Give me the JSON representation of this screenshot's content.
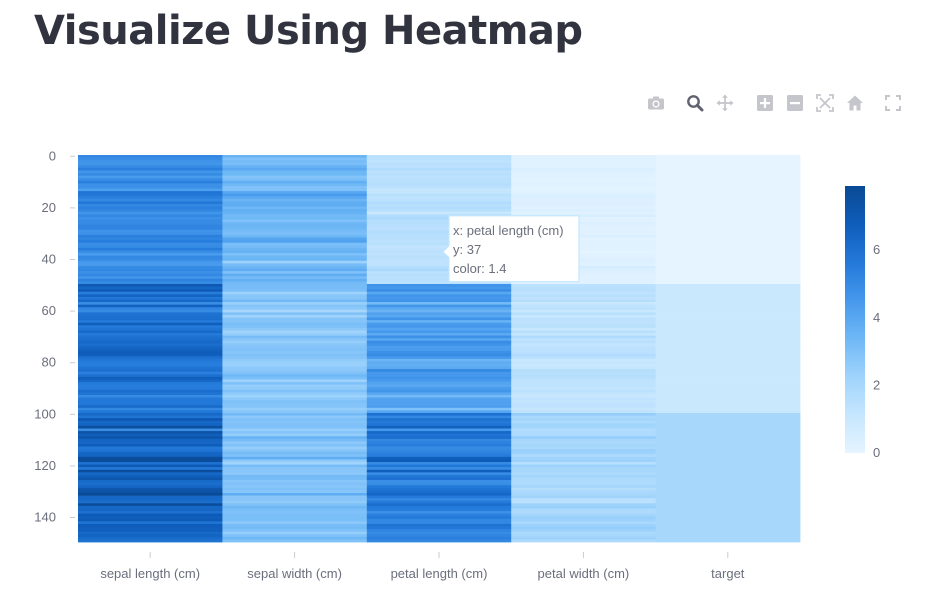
{
  "page": {
    "title": "Visualize Using Heatmap"
  },
  "toolbar": {
    "buttons": [
      {
        "name": "camera-icon",
        "title": "Download plot as a png"
      },
      {
        "name": "zoom-icon",
        "title": "Zoom"
      },
      {
        "name": "pan-icon",
        "title": "Pan"
      },
      {
        "name": "zoom-in-icon",
        "title": "Zoom in"
      },
      {
        "name": "zoom-out-icon",
        "title": "Zoom out"
      },
      {
        "name": "autoscale-icon",
        "title": "Autoscale"
      },
      {
        "name": "reset-axes-icon",
        "title": "Reset axes"
      },
      {
        "name": "fullscreen-icon",
        "title": "Fullscreen"
      }
    ]
  },
  "chart_data": {
    "type": "heatmap",
    "x": [
      "sepal length (cm)",
      "sepal width (cm)",
      "petal length (cm)",
      "petal width (cm)",
      "target"
    ],
    "y_range": [
      0,
      149
    ],
    "yticks": [
      0,
      20,
      40,
      60,
      80,
      100,
      120,
      140
    ],
    "colorbar": {
      "min": 0,
      "max": 7.9,
      "ticks": [
        0,
        2,
        4,
        6
      ]
    },
    "colorscale": [
      "#e6f4ff",
      "#c5e6fe",
      "#9fd3fc",
      "#6fb8f6",
      "#4598ec",
      "#2379d8",
      "#0f5dbb",
      "#0a4a94"
    ],
    "hover": {
      "line1": "x: petal length (cm)",
      "line2": "y: 37",
      "line3": "color: 1.4"
    },
    "rows": [
      [
        5.1,
        3.5,
        1.4,
        0.2,
        0
      ],
      [
        4.9,
        3.0,
        1.4,
        0.2,
        0
      ],
      [
        4.7,
        3.2,
        1.3,
        0.2,
        0
      ],
      [
        4.6,
        3.1,
        1.5,
        0.2,
        0
      ],
      [
        5.0,
        3.6,
        1.4,
        0.2,
        0
      ],
      [
        5.4,
        3.9,
        1.7,
        0.4,
        0
      ],
      [
        4.6,
        3.4,
        1.4,
        0.3,
        0
      ],
      [
        5.0,
        3.4,
        1.5,
        0.2,
        0
      ],
      [
        4.4,
        2.9,
        1.4,
        0.2,
        0
      ],
      [
        4.9,
        3.1,
        1.5,
        0.1,
        0
      ],
      [
        5.4,
        3.7,
        1.5,
        0.2,
        0
      ],
      [
        4.8,
        3.4,
        1.6,
        0.2,
        0
      ],
      [
        4.8,
        3.0,
        1.4,
        0.1,
        0
      ],
      [
        4.3,
        3.0,
        1.1,
        0.1,
        0
      ],
      [
        5.8,
        4.0,
        1.2,
        0.2,
        0
      ],
      [
        5.7,
        4.4,
        1.5,
        0.4,
        0
      ],
      [
        5.4,
        3.9,
        1.3,
        0.4,
        0
      ],
      [
        5.1,
        3.5,
        1.4,
        0.3,
        0
      ],
      [
        5.7,
        3.8,
        1.7,
        0.3,
        0
      ],
      [
        5.1,
        3.8,
        1.5,
        0.3,
        0
      ],
      [
        5.4,
        3.4,
        1.7,
        0.2,
        0
      ],
      [
        5.1,
        3.7,
        1.5,
        0.4,
        0
      ],
      [
        4.6,
        3.6,
        1.0,
        0.2,
        0
      ],
      [
        5.1,
        3.3,
        1.7,
        0.5,
        0
      ],
      [
        4.8,
        3.4,
        1.9,
        0.2,
        0
      ],
      [
        5.0,
        3.0,
        1.6,
        0.2,
        0
      ],
      [
        5.0,
        3.4,
        1.6,
        0.4,
        0
      ],
      [
        5.2,
        3.5,
        1.5,
        0.2,
        0
      ],
      [
        5.2,
        3.4,
        1.4,
        0.2,
        0
      ],
      [
        4.7,
        3.2,
        1.6,
        0.2,
        0
      ],
      [
        4.8,
        3.1,
        1.6,
        0.2,
        0
      ],
      [
        5.4,
        3.4,
        1.5,
        0.4,
        0
      ],
      [
        5.2,
        4.1,
        1.5,
        0.1,
        0
      ],
      [
        5.5,
        4.2,
        1.4,
        0.2,
        0
      ],
      [
        4.9,
        3.1,
        1.5,
        0.2,
        0
      ],
      [
        5.0,
        3.2,
        1.2,
        0.2,
        0
      ],
      [
        5.5,
        3.5,
        1.3,
        0.2,
        0
      ],
      [
        4.9,
        3.6,
        1.4,
        0.1,
        0
      ],
      [
        4.4,
        3.0,
        1.3,
        0.2,
        0
      ],
      [
        5.1,
        3.4,
        1.5,
        0.2,
        0
      ],
      [
        5.0,
        3.5,
        1.3,
        0.3,
        0
      ],
      [
        4.5,
        2.3,
        1.3,
        0.3,
        0
      ],
      [
        4.4,
        3.2,
        1.3,
        0.2,
        0
      ],
      [
        5.0,
        3.5,
        1.6,
        0.6,
        0
      ],
      [
        5.1,
        3.8,
        1.9,
        0.4,
        0
      ],
      [
        4.8,
        3.0,
        1.4,
        0.3,
        0
      ],
      [
        5.1,
        3.8,
        1.6,
        0.2,
        0
      ],
      [
        4.6,
        3.2,
        1.4,
        0.2,
        0
      ],
      [
        5.3,
        3.7,
        1.5,
        0.2,
        0
      ],
      [
        5.0,
        3.3,
        1.4,
        0.2,
        0
      ],
      [
        7.0,
        3.2,
        4.7,
        1.4,
        1
      ],
      [
        6.4,
        3.2,
        4.5,
        1.5,
        1
      ],
      [
        6.9,
        3.1,
        4.9,
        1.5,
        1
      ],
      [
        5.5,
        2.3,
        4.0,
        1.3,
        1
      ],
      [
        6.5,
        2.8,
        4.6,
        1.5,
        1
      ],
      [
        5.7,
        2.8,
        4.5,
        1.3,
        1
      ],
      [
        6.3,
        3.3,
        4.7,
        1.6,
        1
      ],
      [
        4.9,
        2.4,
        3.3,
        1.0,
        1
      ],
      [
        6.6,
        2.9,
        4.6,
        1.3,
        1
      ],
      [
        5.2,
        2.7,
        3.9,
        1.4,
        1
      ],
      [
        5.0,
        2.0,
        3.5,
        1.0,
        1
      ],
      [
        5.9,
        3.0,
        4.2,
        1.5,
        1
      ],
      [
        6.0,
        2.2,
        4.0,
        1.0,
        1
      ],
      [
        6.1,
        2.9,
        4.7,
        1.4,
        1
      ],
      [
        5.6,
        2.9,
        3.6,
        1.3,
        1
      ],
      [
        6.7,
        3.1,
        4.4,
        1.4,
        1
      ],
      [
        5.6,
        3.0,
        4.5,
        1.5,
        1
      ],
      [
        5.8,
        2.7,
        4.1,
        1.0,
        1
      ],
      [
        6.2,
        2.2,
        4.5,
        1.5,
        1
      ],
      [
        5.6,
        2.5,
        3.9,
        1.1,
        1
      ],
      [
        5.9,
        3.2,
        4.8,
        1.8,
        1
      ],
      [
        6.1,
        2.8,
        4.0,
        1.3,
        1
      ],
      [
        6.3,
        2.5,
        4.9,
        1.5,
        1
      ],
      [
        6.1,
        2.8,
        4.7,
        1.2,
        1
      ],
      [
        6.4,
        2.9,
        4.3,
        1.3,
        1
      ],
      [
        6.6,
        3.0,
        4.4,
        1.4,
        1
      ],
      [
        6.8,
        2.8,
        4.8,
        1.4,
        1
      ],
      [
        6.7,
        3.0,
        5.0,
        1.7,
        1
      ],
      [
        6.0,
        2.9,
        4.5,
        1.5,
        1
      ],
      [
        5.7,
        2.6,
        3.5,
        1.0,
        1
      ],
      [
        5.5,
        2.4,
        3.8,
        1.1,
        1
      ],
      [
        5.5,
        2.4,
        3.7,
        1.0,
        1
      ],
      [
        5.8,
        2.7,
        3.9,
        1.2,
        1
      ],
      [
        6.0,
        2.7,
        5.1,
        1.6,
        1
      ],
      [
        5.4,
        3.0,
        4.5,
        1.5,
        1
      ],
      [
        6.0,
        3.4,
        4.5,
        1.6,
        1
      ],
      [
        6.7,
        3.1,
        4.7,
        1.5,
        1
      ],
      [
        6.3,
        2.3,
        4.4,
        1.3,
        1
      ],
      [
        5.6,
        3.0,
        4.1,
        1.3,
        1
      ],
      [
        5.5,
        2.5,
        4.0,
        1.3,
        1
      ],
      [
        5.5,
        2.6,
        4.4,
        1.2,
        1
      ],
      [
        6.1,
        3.0,
        4.6,
        1.4,
        1
      ],
      [
        5.8,
        2.6,
        4.0,
        1.2,
        1
      ],
      [
        5.0,
        2.3,
        3.3,
        1.0,
        1
      ],
      [
        5.6,
        2.7,
        4.2,
        1.3,
        1
      ],
      [
        5.7,
        3.0,
        4.2,
        1.2,
        1
      ],
      [
        5.7,
        2.9,
        4.2,
        1.3,
        1
      ],
      [
        6.2,
        2.9,
        4.3,
        1.3,
        1
      ],
      [
        5.1,
        2.5,
        3.0,
        1.1,
        1
      ],
      [
        5.7,
        2.8,
        4.1,
        1.3,
        1
      ],
      [
        6.3,
        3.3,
        6.0,
        2.5,
        2
      ],
      [
        5.8,
        2.7,
        5.1,
        1.9,
        2
      ],
      [
        7.1,
        3.0,
        5.9,
        2.1,
        2
      ],
      [
        6.3,
        2.9,
        5.6,
        1.8,
        2
      ],
      [
        6.5,
        3.0,
        5.8,
        2.2,
        2
      ],
      [
        7.6,
        3.0,
        6.6,
        2.1,
        2
      ],
      [
        4.9,
        2.5,
        4.5,
        1.7,
        2
      ],
      [
        7.3,
        2.9,
        6.3,
        1.8,
        2
      ],
      [
        6.7,
        2.5,
        5.8,
        1.8,
        2
      ],
      [
        7.2,
        3.6,
        6.1,
        2.5,
        2
      ],
      [
        6.5,
        3.2,
        5.1,
        2.0,
        2
      ],
      [
        6.4,
        2.7,
        5.3,
        1.9,
        2
      ],
      [
        6.8,
        3.0,
        5.5,
        2.1,
        2
      ],
      [
        5.7,
        2.5,
        5.0,
        2.0,
        2
      ],
      [
        5.8,
        2.8,
        5.1,
        2.4,
        2
      ],
      [
        6.4,
        3.2,
        5.3,
        2.3,
        2
      ],
      [
        6.5,
        3.0,
        5.5,
        1.8,
        2
      ],
      [
        7.7,
        3.8,
        6.7,
        2.2,
        2
      ],
      [
        7.7,
        2.6,
        6.9,
        2.3,
        2
      ],
      [
        6.0,
        2.2,
        5.0,
        1.5,
        2
      ],
      [
        6.9,
        3.2,
        5.7,
        2.3,
        2
      ],
      [
        5.6,
        2.8,
        4.9,
        2.0,
        2
      ],
      [
        7.7,
        2.8,
        6.7,
        2.0,
        2
      ],
      [
        6.3,
        2.7,
        4.9,
        1.8,
        2
      ],
      [
        6.7,
        3.3,
        5.7,
        2.1,
        2
      ],
      [
        7.2,
        3.2,
        6.0,
        1.8,
        2
      ],
      [
        6.2,
        2.8,
        4.8,
        1.8,
        2
      ],
      [
        6.1,
        3.0,
        4.9,
        1.8,
        2
      ],
      [
        6.4,
        2.8,
        5.6,
        2.1,
        2
      ],
      [
        7.2,
        3.0,
        5.8,
        1.6,
        2
      ],
      [
        7.4,
        2.8,
        6.1,
        1.9,
        2
      ],
      [
        7.9,
        3.8,
        6.4,
        2.0,
        2
      ],
      [
        6.4,
        2.8,
        5.6,
        2.2,
        2
      ],
      [
        6.3,
        2.8,
        5.1,
        1.5,
        2
      ],
      [
        6.1,
        2.6,
        5.6,
        1.4,
        2
      ],
      [
        7.7,
        3.0,
        6.1,
        2.3,
        2
      ],
      [
        6.3,
        3.4,
        5.6,
        2.4,
        2
      ],
      [
        6.4,
        3.1,
        5.5,
        1.8,
        2
      ],
      [
        6.0,
        3.0,
        4.8,
        1.8,
        2
      ],
      [
        6.9,
        3.1,
        5.4,
        2.1,
        2
      ],
      [
        6.7,
        3.1,
        5.6,
        2.4,
        2
      ],
      [
        6.9,
        3.1,
        5.1,
        2.3,
        2
      ],
      [
        5.8,
        2.7,
        5.1,
        1.9,
        2
      ],
      [
        6.8,
        3.2,
        5.9,
        2.3,
        2
      ],
      [
        6.7,
        3.3,
        5.7,
        2.5,
        2
      ],
      [
        6.7,
        3.0,
        5.2,
        2.3,
        2
      ],
      [
        6.3,
        2.5,
        5.0,
        1.9,
        2
      ],
      [
        6.5,
        3.0,
        5.2,
        2.0,
        2
      ],
      [
        6.2,
        3.4,
        5.4,
        2.3,
        2
      ],
      [
        5.9,
        3.0,
        5.1,
        1.8,
        2
      ]
    ]
  }
}
